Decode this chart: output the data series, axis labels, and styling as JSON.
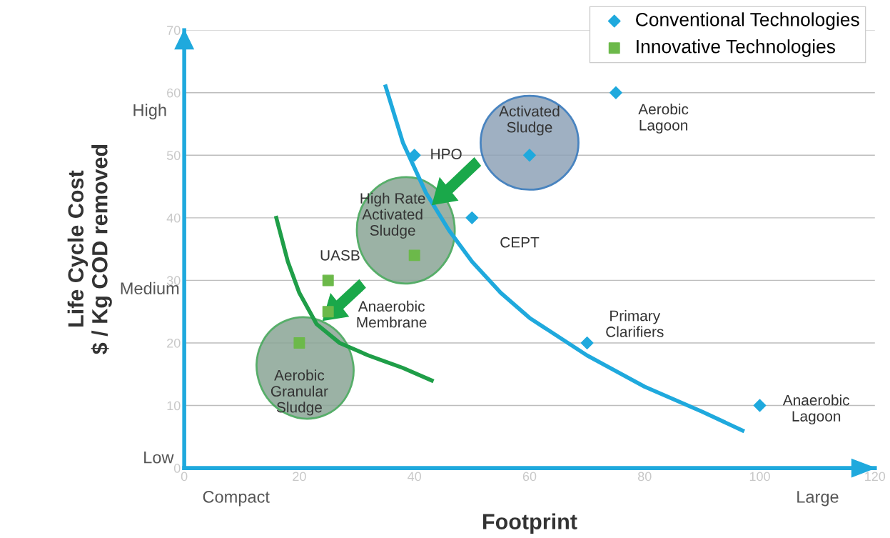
{
  "chart_data": {
    "type": "scatter",
    "xlabel": "Footprint",
    "ylabel": "Life Cycle Cost\n$ / Kg COD removed",
    "xlim": [
      0,
      120
    ],
    "xticks": [
      0,
      20,
      40,
      60,
      80,
      100,
      120
    ],
    "ylim": [
      0,
      70
    ],
    "yticks": [
      0,
      10,
      20,
      30,
      40,
      50,
      60,
      70
    ],
    "grid": "y",
    "legend": "top right",
    "series": [
      {
        "name": "Conventional Technologies",
        "color": "#1fa9dd",
        "marker": "diamond",
        "x": [
          40,
          60,
          75,
          50,
          70,
          100
        ],
        "values": [
          50,
          50,
          60,
          40,
          20,
          10
        ]
      },
      {
        "name": "Innovative Technologies",
        "color": "#6cb94a",
        "marker": "square",
        "x": [
          40,
          25,
          25,
          20
        ],
        "values": [
          34,
          30,
          25,
          20
        ]
      },
      {
        "type": "line",
        "color": "#1fa9dd",
        "marker": "none",
        "x": [
          35,
          38,
          42,
          46,
          50,
          55,
          60,
          70,
          80,
          90,
          97
        ],
        "values": [
          61,
          52,
          44,
          38,
          33,
          28,
          24,
          18,
          13,
          9,
          6
        ]
      },
      {
        "type": "line",
        "color": "#1f9e48",
        "marker": "none",
        "x": [
          16,
          18,
          20,
          23,
          27,
          32,
          38,
          43
        ],
        "values": [
          40,
          33,
          28,
          23,
          20,
          18,
          16,
          14
        ]
      }
    ],
    "annotations": [
      {
        "text": "HPO",
        "x": 40,
        "y": 50
      },
      {
        "text": "Activated\nSludge",
        "x": 60,
        "y": 50
      },
      {
        "text": "Aerobic\nLagoon",
        "x": 75,
        "y": 60
      },
      {
        "text": "CEPT",
        "x": 50,
        "y": 40
      },
      {
        "text": "Primary\nClarifiers",
        "x": 70,
        "y": 20
      },
      {
        "text": "Anaerobic\nLagoon",
        "x": 100,
        "y": 10
      },
      {
        "text": "High Rate\nActivated\nSludge",
        "x": 40,
        "y": 34
      },
      {
        "text": "UASB",
        "x": 25,
        "y": 30
      },
      {
        "text": "Anaerobic\nMembrane",
        "x": 25,
        "y": 25
      },
      {
        "text": "Aerobic\nGranular\nSludge",
        "x": 20,
        "y": 20
      },
      "High",
      "Medium",
      "Low",
      "Compact",
      "Large"
    ]
  }
}
